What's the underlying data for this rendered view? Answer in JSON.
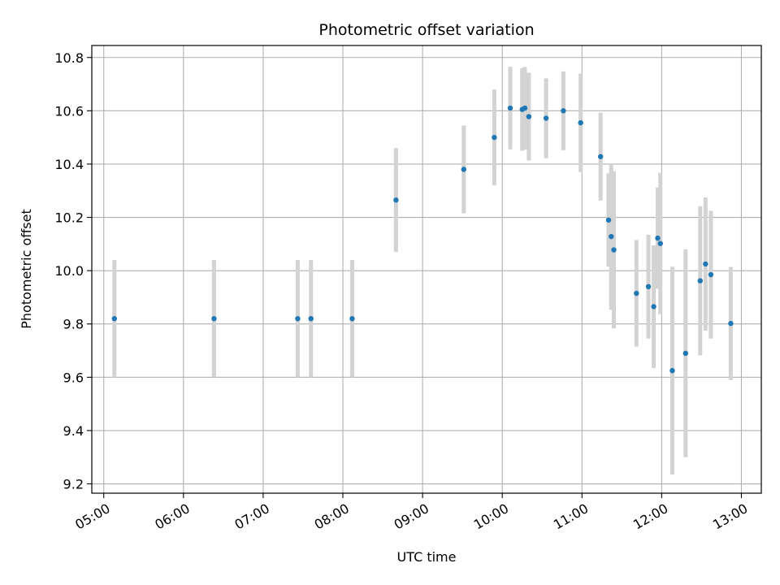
{
  "chart_data": {
    "type": "scatter",
    "title": "Photometric offset variation",
    "xlabel": "UTC time",
    "ylabel": "Photometric offset",
    "x_tick_labels": [
      "05:00",
      "06:00",
      "07:00",
      "08:00",
      "09:00",
      "10:00",
      "11:00",
      "12:00",
      "13:00"
    ],
    "y_tick_labels": [
      "9.2",
      "9.4",
      "9.6",
      "9.8",
      "10.0",
      "10.2",
      "10.4",
      "10.6",
      "10.8"
    ],
    "xlim": [
      "04:51",
      "13:15"
    ],
    "ylim": [
      9.165,
      10.845
    ],
    "grid": true,
    "colors": {
      "point": "#1f77b4",
      "errorbar": "#d3d3d3",
      "grid": "#b0b0b0"
    },
    "points": [
      {
        "x": "05:08",
        "y": 9.82,
        "yerr": 0.22
      },
      {
        "x": "06:23",
        "y": 9.82,
        "yerr": 0.22
      },
      {
        "x": "07:26",
        "y": 9.82,
        "yerr": 0.22
      },
      {
        "x": "07:36",
        "y": 9.82,
        "yerr": 0.22
      },
      {
        "x": "08:07",
        "y": 9.82,
        "yerr": 0.22
      },
      {
        "x": "08:40",
        "y": 10.265,
        "yerr": 0.195
      },
      {
        "x": "09:31",
        "y": 10.38,
        "yerr": 0.165
      },
      {
        "x": "09:54",
        "y": 10.5,
        "yerr": 0.18
      },
      {
        "x": "10:06",
        "y": 10.61,
        "yerr": 0.155
      },
      {
        "x": "10:15",
        "y": 10.605,
        "yerr": 0.155
      },
      {
        "x": "10:17",
        "y": 10.61,
        "yerr": 0.155
      },
      {
        "x": "10:20",
        "y": 10.578,
        "yerr": 0.165
      },
      {
        "x": "10:33",
        "y": 10.572,
        "yerr": 0.15
      },
      {
        "x": "10:46",
        "y": 10.6,
        "yerr": 0.148
      },
      {
        "x": "10:59",
        "y": 10.555,
        "yerr": 0.185
      },
      {
        "x": "11:14",
        "y": 10.428,
        "yerr": 0.165
      },
      {
        "x": "11:20",
        "y": 10.19,
        "yerr": 0.175
      },
      {
        "x": "11:22",
        "y": 10.128,
        "yerr": 0.275
      },
      {
        "x": "11:24",
        "y": 10.078,
        "yerr": 0.295
      },
      {
        "x": "11:41",
        "y": 9.915,
        "yerr": 0.2
      },
      {
        "x": "11:50",
        "y": 9.94,
        "yerr": 0.195
      },
      {
        "x": "11:54",
        "y": 9.865,
        "yerr": 0.23
      },
      {
        "x": "11:57",
        "y": 10.122,
        "yerr": 0.19
      },
      {
        "x": "11:59",
        "y": 10.102,
        "yerr": 0.265
      },
      {
        "x": "12:08",
        "y": 9.625,
        "yerr": 0.39
      },
      {
        "x": "12:18",
        "y": 9.69,
        "yerr": 0.39
      },
      {
        "x": "12:29",
        "y": 9.962,
        "yerr": 0.28
      },
      {
        "x": "12:33",
        "y": 10.025,
        "yerr": 0.25
      },
      {
        "x": "12:37",
        "y": 9.985,
        "yerr": 0.24
      },
      {
        "x": "12:52",
        "y": 9.802,
        "yerr": 0.212
      }
    ]
  }
}
